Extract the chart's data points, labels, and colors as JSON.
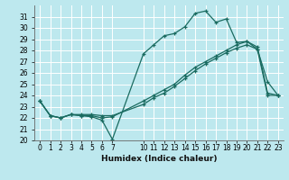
{
  "background_color": "#bde8ee",
  "grid_color": "#ffffff",
  "line_color": "#1a6b60",
  "xlabel": "Humidex (Indice chaleur)",
  "ylim": [
    20,
    32
  ],
  "xlim": [
    -0.5,
    23.5
  ],
  "yticks": [
    20,
    21,
    22,
    23,
    24,
    25,
    26,
    27,
    28,
    29,
    30,
    31
  ],
  "xtick_positions": [
    0,
    1,
    2,
    3,
    4,
    5,
    6,
    7,
    10,
    11,
    12,
    13,
    14,
    15,
    16,
    17,
    18,
    19,
    20,
    21,
    22,
    23
  ],
  "xtick_labels": [
    "0",
    "1",
    "2",
    "3",
    "4",
    "5",
    "6",
    "7",
    "10",
    "11",
    "12",
    "13",
    "14",
    "15",
    "16",
    "17",
    "18",
    "19",
    "20",
    "21",
    "22",
    "23"
  ],
  "series1_x": [
    0,
    1,
    2,
    3,
    4,
    5,
    6,
    7,
    10,
    11,
    12,
    13,
    14,
    15,
    16,
    17,
    18,
    19,
    20,
    21,
    22,
    23
  ],
  "series1_y": [
    23.5,
    22.2,
    22.0,
    22.3,
    22.2,
    22.1,
    21.8,
    20.1,
    27.7,
    28.5,
    29.3,
    29.5,
    30.1,
    31.3,
    31.5,
    30.5,
    30.8,
    28.7,
    28.8,
    28.1,
    25.2,
    24.0
  ],
  "series2_x": [
    0,
    1,
    2,
    3,
    4,
    5,
    6,
    7,
    10,
    11,
    12,
    13,
    14,
    15,
    16,
    17,
    18,
    19,
    20,
    21,
    22,
    23
  ],
  "series2_y": [
    23.5,
    22.2,
    22.0,
    22.3,
    22.2,
    22.2,
    22.0,
    22.1,
    23.5,
    24.0,
    24.5,
    25.0,
    25.8,
    26.5,
    27.0,
    27.5,
    28.0,
    28.5,
    28.8,
    28.3,
    24.2,
    24.0
  ],
  "series3_x": [
    0,
    1,
    2,
    3,
    4,
    5,
    6,
    7,
    10,
    11,
    12,
    13,
    14,
    15,
    16,
    17,
    18,
    19,
    20,
    21,
    22,
    23
  ],
  "series3_y": [
    23.5,
    22.2,
    22.0,
    22.3,
    22.3,
    22.3,
    22.2,
    22.2,
    23.2,
    23.8,
    24.2,
    24.8,
    25.5,
    26.2,
    26.8,
    27.3,
    27.8,
    28.2,
    28.5,
    28.1,
    24.0,
    24.0
  ],
  "tick_fontsize": 5.5,
  "xlabel_fontsize": 6.5
}
